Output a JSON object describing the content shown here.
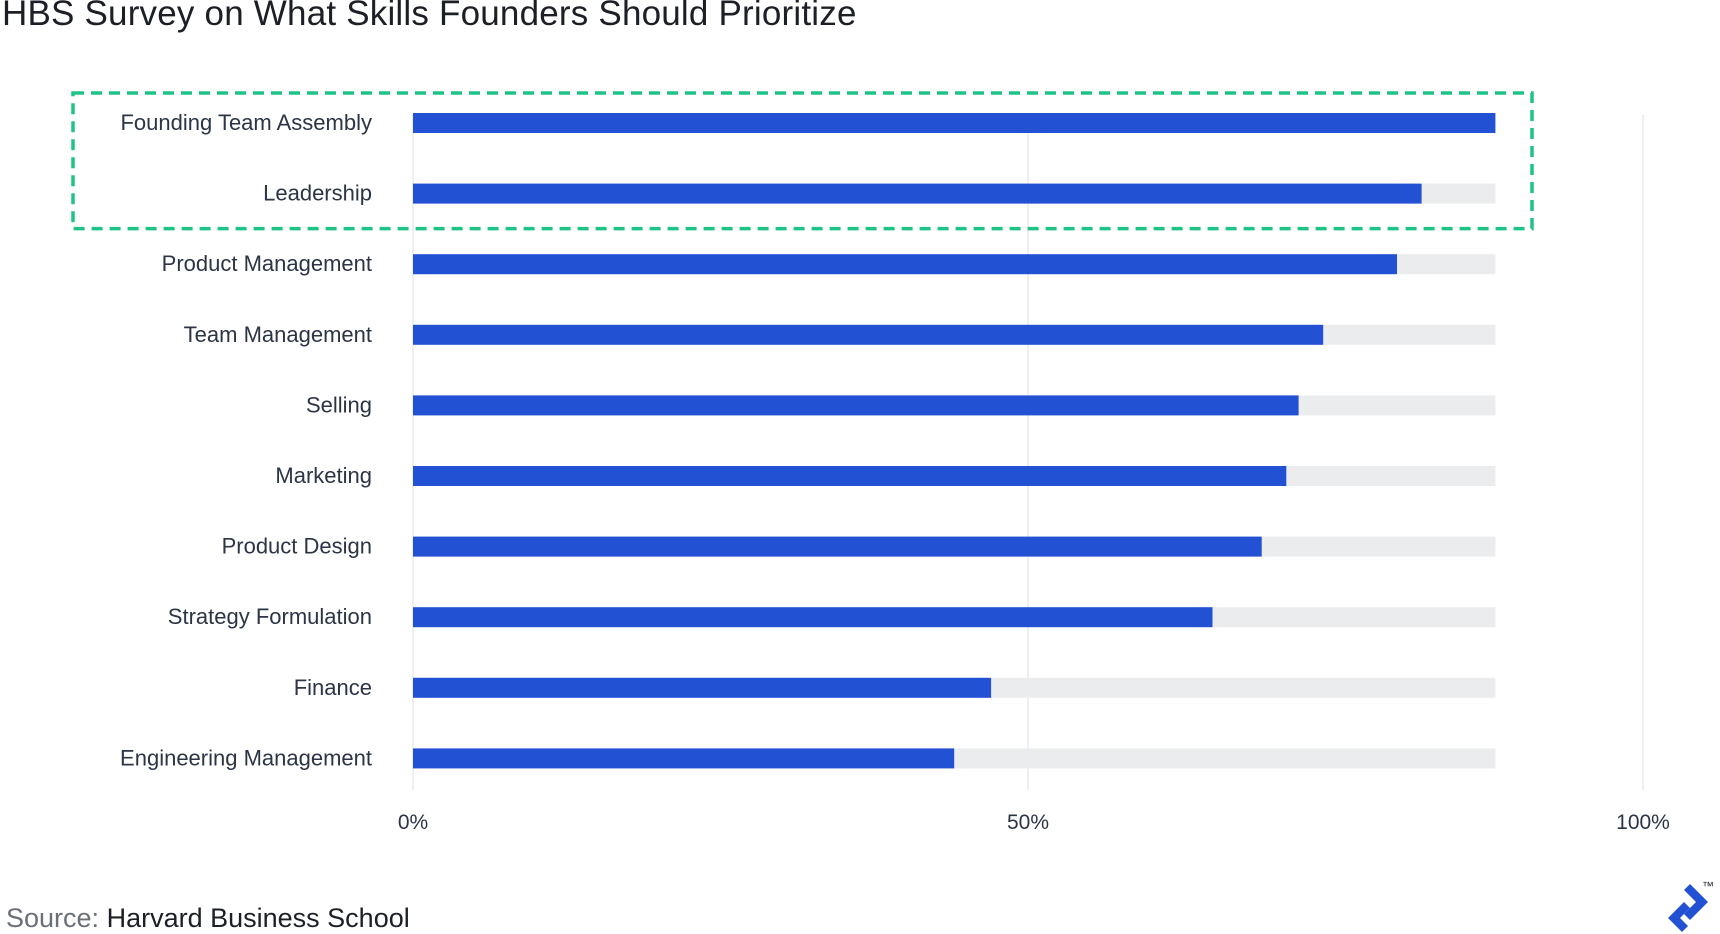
{
  "title": "HBS Survey on What Skills Founders Should Prioritize",
  "source": {
    "prefix": "Source:",
    "name": "Harvard Business School"
  },
  "logo": {
    "icon": "toptal-logo-icon",
    "mark": "™"
  },
  "colors": {
    "bar": "#2351d3",
    "track": "#ebecee",
    "grid": "#e2e4e8",
    "highlight": "#1fc386"
  },
  "highlight": {
    "categories": [
      "Founding Team Assembly",
      "Leadership"
    ],
    "style": "dashed-box"
  },
  "chart_data": {
    "type": "bar",
    "orientation": "horizontal",
    "categories": [
      "Founding Team Assembly",
      "Leadership",
      "Product Management",
      "Team Management",
      "Selling",
      "Marketing",
      "Product Design",
      "Strategy Formulation",
      "Finance",
      "Engineering Management"
    ],
    "values": [
      88,
      82,
      80,
      74,
      72,
      71,
      69,
      65,
      47,
      44
    ],
    "track_max": 88,
    "xlim": [
      0,
      100
    ],
    "xticks": [
      0,
      50,
      100
    ],
    "xtick_labels": [
      "0%",
      "50%",
      "100%"
    ],
    "grid": true,
    "legend": "none"
  }
}
